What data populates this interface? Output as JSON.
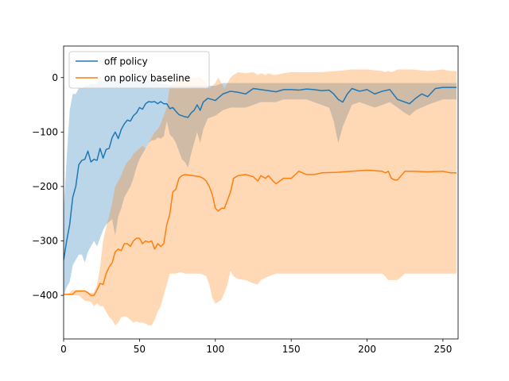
{
  "chart_data": {
    "type": "line",
    "title": "",
    "xlabel": "",
    "ylabel": "",
    "xlim": [
      0,
      260
    ],
    "ylim": [
      -480,
      58
    ],
    "xticks": [
      0,
      50,
      100,
      150,
      200,
      250
    ],
    "yticks": [
      -400,
      -300,
      -200,
      -100,
      0
    ],
    "xtick_labels": [
      "0",
      "50",
      "100",
      "150",
      "200",
      "250"
    ],
    "ytick_labels": [
      "−400",
      "−300",
      "−200",
      "−100",
      "0"
    ],
    "grid": false,
    "legend_position": "top-left",
    "series": [
      {
        "name": "off policy",
        "color": "#1f77b4",
        "band_color": "#1f77b4",
        "x": [
          0,
          2,
          4,
          6,
          8,
          10,
          12,
          14,
          16,
          18,
          20,
          22,
          24,
          26,
          28,
          30,
          32,
          34,
          36,
          38,
          40,
          42,
          44,
          46,
          48,
          50,
          52,
          54,
          56,
          58,
          60,
          62,
          64,
          66,
          68,
          70,
          72,
          74,
          76,
          78,
          80,
          82,
          84,
          86,
          88,
          90,
          92,
          95,
          100,
          105,
          110,
          115,
          120,
          125,
          130,
          135,
          140,
          145,
          150,
          155,
          160,
          165,
          170,
          175,
          178,
          181,
          184,
          187,
          190,
          195,
          200,
          205,
          210,
          215,
          220,
          225,
          228,
          232,
          236,
          240,
          245,
          250,
          255,
          259
        ],
        "values": [
          -335,
          -300,
          -270,
          -220,
          -200,
          -160,
          -152,
          -150,
          -135,
          -155,
          -150,
          -152,
          -130,
          -148,
          -132,
          -130,
          -110,
          -100,
          -112,
          -95,
          -85,
          -78,
          -80,
          -70,
          -65,
          -55,
          -58,
          -48,
          -44,
          -45,
          -44,
          -48,
          -44,
          -48,
          -48,
          -57,
          -55,
          -62,
          -68,
          -70,
          -72,
          -73,
          -65,
          -60,
          -50,
          -60,
          -45,
          -38,
          -42,
          -30,
          -25,
          -27,
          -30,
          -20,
          -22,
          -24,
          -26,
          -22,
          -22,
          -23,
          -21,
          -22,
          -24,
          -23,
          -30,
          -40,
          -45,
          -30,
          -20,
          -25,
          -22,
          -30,
          -25,
          -22,
          -40,
          -45,
          -48,
          -38,
          -30,
          -35,
          -20,
          -18,
          -18,
          -18
        ],
        "upper": [
          -245,
          -150,
          -60,
          -30,
          -30,
          -20,
          -20,
          -15,
          -15,
          -10,
          -12,
          -10,
          -5,
          -8,
          -5,
          -5,
          -5,
          0,
          -5,
          -5,
          -5,
          -5,
          -10,
          -5,
          -5,
          -5,
          -5,
          -5,
          -5,
          -5,
          -5,
          -10,
          -10,
          -12,
          -12,
          -15,
          -15,
          -15,
          -15,
          -15,
          -15,
          -15,
          -15,
          -15,
          -15,
          -15,
          -15,
          -15,
          -15,
          -10,
          -10,
          -10,
          -10,
          -10,
          -10,
          -10,
          -10,
          -10,
          -10,
          -10,
          -10,
          -10,
          -10,
          -10,
          -10,
          -10,
          -10,
          -10,
          -10,
          -10,
          -10,
          -10,
          -10,
          -10,
          -10,
          -10,
          -10,
          -10,
          -10,
          -10,
          -10,
          -10,
          -10,
          -10
        ],
        "lower": [
          -400,
          -385,
          -375,
          -345,
          -335,
          -325,
          -325,
          -340,
          -320,
          -310,
          -300,
          -310,
          -295,
          -280,
          -270,
          -265,
          -260,
          -290,
          -255,
          -240,
          -220,
          -210,
          -200,
          -185,
          -165,
          -150,
          -140,
          -130,
          -120,
          -115,
          -115,
          -110,
          -112,
          -108,
          -80,
          -105,
          -110,
          -120,
          -135,
          -150,
          -155,
          -165,
          -140,
          -120,
          -100,
          -120,
          -95,
          -75,
          -70,
          -60,
          -55,
          -55,
          -55,
          -50,
          -45,
          -45,
          -45,
          -40,
          -40,
          -40,
          -40,
          -45,
          -50,
          -55,
          -80,
          -120,
          -90,
          -70,
          -50,
          -45,
          -50,
          -55,
          -50,
          -45,
          -55,
          -65,
          -70,
          -60,
          -55,
          -50,
          -45,
          -40,
          -40,
          -40
        ]
      },
      {
        "name": "on policy baseline",
        "color": "#ff7f0e",
        "band_color": "#ff7f0e",
        "x": [
          0,
          3,
          6,
          8,
          10,
          14,
          16,
          18,
          20,
          22,
          24,
          26,
          28,
          30,
          32,
          34,
          36,
          38,
          40,
          42,
          44,
          46,
          48,
          50,
          52,
          54,
          56,
          58,
          60,
          62,
          64,
          66,
          68,
          70,
          72,
          74,
          76,
          78,
          80,
          85,
          90,
          92,
          94,
          96,
          98,
          100,
          102,
          104,
          106,
          108,
          110,
          112,
          115,
          120,
          125,
          128,
          130,
          133,
          135,
          138,
          140,
          145,
          150,
          152,
          155,
          160,
          165,
          170,
          180,
          190,
          200,
          210,
          212,
          214,
          216,
          218,
          220,
          225,
          230,
          240,
          250,
          255,
          259
        ],
        "values": [
          -398,
          -398,
          -398,
          -392,
          -392,
          -392,
          -395,
          -400,
          -400,
          -390,
          -378,
          -380,
          -360,
          -348,
          -340,
          -320,
          -315,
          -318,
          -305,
          -305,
          -310,
          -300,
          -295,
          -295,
          -305,
          -300,
          -302,
          -300,
          -315,
          -305,
          -310,
          -305,
          -270,
          -250,
          -210,
          -205,
          -185,
          -180,
          -178,
          -180,
          -182,
          -185,
          -190,
          -200,
          -215,
          -240,
          -245,
          -240,
          -240,
          -225,
          -210,
          -185,
          -180,
          -178,
          -182,
          -190,
          -180,
          -185,
          -180,
          -190,
          -195,
          -185,
          -185,
          -180,
          -172,
          -178,
          -178,
          -175,
          -174,
          -172,
          -170,
          -172,
          -175,
          -172,
          -185,
          -188,
          -188,
          -172,
          -172,
          -173,
          -172,
          -175,
          -175
        ],
        "upper": [
          -398,
          -398,
          -390,
          -392,
          -392,
          -390,
          -395,
          -395,
          -395,
          -380,
          -350,
          -300,
          -275,
          -255,
          -230,
          -200,
          -190,
          -180,
          -165,
          -155,
          -150,
          -140,
          -135,
          -130,
          -125,
          -130,
          -120,
          -110,
          -100,
          -95,
          -85,
          -70,
          -55,
          -15,
          -10,
          -5,
          0,
          0,
          0,
          0,
          0,
          -5,
          -10,
          -20,
          -15,
          -10,
          0,
          -10,
          -20,
          -10,
          0,
          5,
          10,
          8,
          10,
          5,
          8,
          5,
          8,
          5,
          5,
          8,
          10,
          10,
          10,
          10,
          10,
          10,
          12,
          15,
          15,
          12,
          10,
          12,
          10,
          12,
          15,
          15,
          15,
          12,
          15,
          12,
          12
        ],
        "lower": [
          -398,
          -398,
          -400,
          -400,
          -400,
          -410,
          -410,
          -412,
          -420,
          -415,
          -420,
          -420,
          -430,
          -440,
          -445,
          -455,
          -450,
          -440,
          -438,
          -440,
          -445,
          -450,
          -448,
          -450,
          -450,
          -452,
          -455,
          -455,
          -445,
          -430,
          -420,
          -400,
          -380,
          -360,
          -360,
          -360,
          -358,
          -358,
          -360,
          -360,
          -360,
          -362,
          -365,
          -380,
          -405,
          -415,
          -412,
          -408,
          -395,
          -380,
          -355,
          -365,
          -370,
          -372,
          -378,
          -380,
          -372,
          -368,
          -365,
          -362,
          -360,
          -360,
          -360,
          -360,
          -360,
          -360,
          -360,
          -360,
          -360,
          -360,
          -360,
          -360,
          -365,
          -372,
          -372,
          -372,
          -372,
          -360,
          -360,
          -360,
          -360,
          -360,
          -360
        ]
      }
    ]
  }
}
